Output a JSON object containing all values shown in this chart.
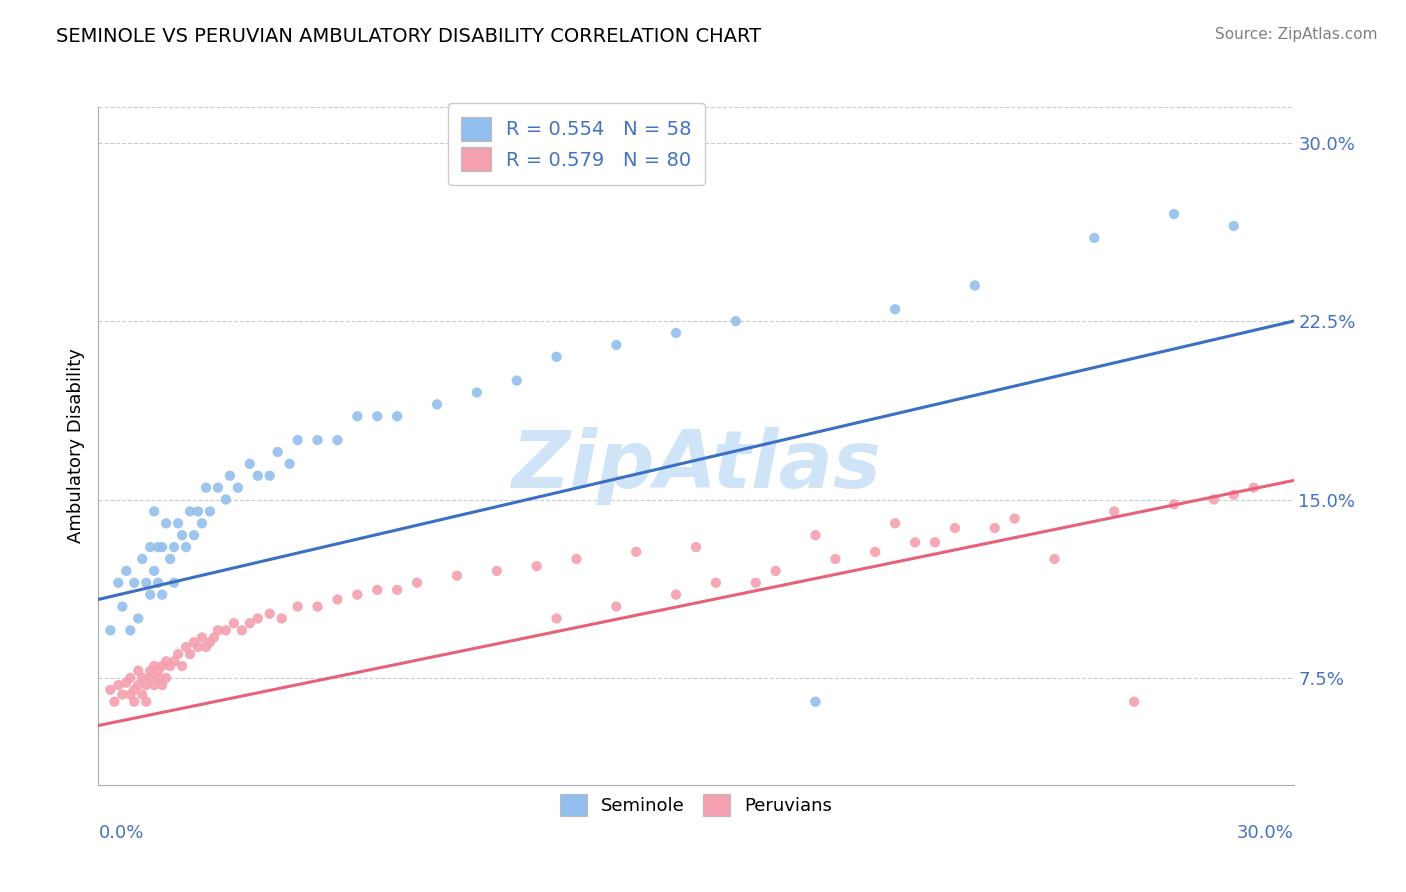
{
  "title": "SEMINOLE VS PERUVIAN AMBULATORY DISABILITY CORRELATION CHART",
  "source": "Source: ZipAtlas.com",
  "ylabel": "Ambulatory Disability",
  "xmin": 0.0,
  "xmax": 0.3,
  "ymin": 0.03,
  "ymax": 0.315,
  "yticks": [
    0.075,
    0.15,
    0.225,
    0.3
  ],
  "ytick_labels": [
    "7.5%",
    "15.0%",
    "22.5%",
    "30.0%"
  ],
  "seminole_R": 0.554,
  "seminole_N": 58,
  "peruvian_R": 0.579,
  "peruvian_N": 80,
  "seminole_color": "#92BFED",
  "peruvian_color": "#F4A0B0",
  "seminole_line_color": "#3A6FC4",
  "peruvian_line_color": "#E8607A",
  "legend_text_color": "#4472C4",
  "watermark": "ZipAtlas",
  "watermark_color": "#D0E4F8",
  "background_color": "#FFFFFF",
  "grid_color": "#CCCCCC",
  "seminole_line_start_y": 0.108,
  "seminole_line_end_y": 0.225,
  "peruvian_line_start_y": 0.055,
  "peruvian_line_end_y": 0.158,
  "seminole_x": [
    0.003,
    0.005,
    0.006,
    0.007,
    0.008,
    0.009,
    0.01,
    0.011,
    0.012,
    0.013,
    0.013,
    0.014,
    0.014,
    0.015,
    0.015,
    0.016,
    0.016,
    0.017,
    0.018,
    0.019,
    0.019,
    0.02,
    0.021,
    0.022,
    0.023,
    0.024,
    0.025,
    0.026,
    0.027,
    0.028,
    0.03,
    0.032,
    0.033,
    0.035,
    0.038,
    0.04,
    0.043,
    0.045,
    0.048,
    0.05,
    0.055,
    0.06,
    0.065,
    0.07,
    0.075,
    0.085,
    0.095,
    0.105,
    0.115,
    0.13,
    0.145,
    0.16,
    0.18,
    0.2,
    0.22,
    0.25,
    0.27,
    0.285
  ],
  "seminole_y": [
    0.095,
    0.115,
    0.105,
    0.12,
    0.095,
    0.115,
    0.1,
    0.125,
    0.115,
    0.13,
    0.11,
    0.12,
    0.145,
    0.13,
    0.115,
    0.13,
    0.11,
    0.14,
    0.125,
    0.13,
    0.115,
    0.14,
    0.135,
    0.13,
    0.145,
    0.135,
    0.145,
    0.14,
    0.155,
    0.145,
    0.155,
    0.15,
    0.16,
    0.155,
    0.165,
    0.16,
    0.16,
    0.17,
    0.165,
    0.175,
    0.175,
    0.175,
    0.185,
    0.185,
    0.185,
    0.19,
    0.195,
    0.2,
    0.21,
    0.215,
    0.22,
    0.225,
    0.065,
    0.23,
    0.24,
    0.26,
    0.27,
    0.265
  ],
  "peruvian_x": [
    0.003,
    0.004,
    0.005,
    0.006,
    0.007,
    0.008,
    0.008,
    0.009,
    0.009,
    0.01,
    0.01,
    0.011,
    0.011,
    0.012,
    0.012,
    0.013,
    0.013,
    0.014,
    0.014,
    0.015,
    0.015,
    0.016,
    0.016,
    0.017,
    0.017,
    0.018,
    0.019,
    0.02,
    0.021,
    0.022,
    0.023,
    0.024,
    0.025,
    0.026,
    0.027,
    0.028,
    0.029,
    0.03,
    0.032,
    0.034,
    0.036,
    0.038,
    0.04,
    0.043,
    0.046,
    0.05,
    0.055,
    0.06,
    0.065,
    0.07,
    0.075,
    0.08,
    0.09,
    0.1,
    0.11,
    0.12,
    0.135,
    0.15,
    0.165,
    0.18,
    0.2,
    0.21,
    0.225,
    0.24,
    0.255,
    0.26,
    0.27,
    0.28,
    0.285,
    0.29,
    0.115,
    0.13,
    0.145,
    0.155,
    0.17,
    0.185,
    0.195,
    0.205,
    0.215,
    0.23
  ],
  "peruvian_y": [
    0.07,
    0.065,
    0.072,
    0.068,
    0.073,
    0.068,
    0.075,
    0.07,
    0.065,
    0.072,
    0.078,
    0.068,
    0.075,
    0.072,
    0.065,
    0.075,
    0.078,
    0.072,
    0.08,
    0.075,
    0.078,
    0.08,
    0.072,
    0.082,
    0.075,
    0.08,
    0.082,
    0.085,
    0.08,
    0.088,
    0.085,
    0.09,
    0.088,
    0.092,
    0.088,
    0.09,
    0.092,
    0.095,
    0.095,
    0.098,
    0.095,
    0.098,
    0.1,
    0.102,
    0.1,
    0.105,
    0.105,
    0.108,
    0.11,
    0.112,
    0.112,
    0.115,
    0.118,
    0.12,
    0.122,
    0.125,
    0.128,
    0.13,
    0.115,
    0.135,
    0.14,
    0.132,
    0.138,
    0.125,
    0.145,
    0.065,
    0.148,
    0.15,
    0.152,
    0.155,
    0.1,
    0.105,
    0.11,
    0.115,
    0.12,
    0.125,
    0.128,
    0.132,
    0.138,
    0.142
  ]
}
